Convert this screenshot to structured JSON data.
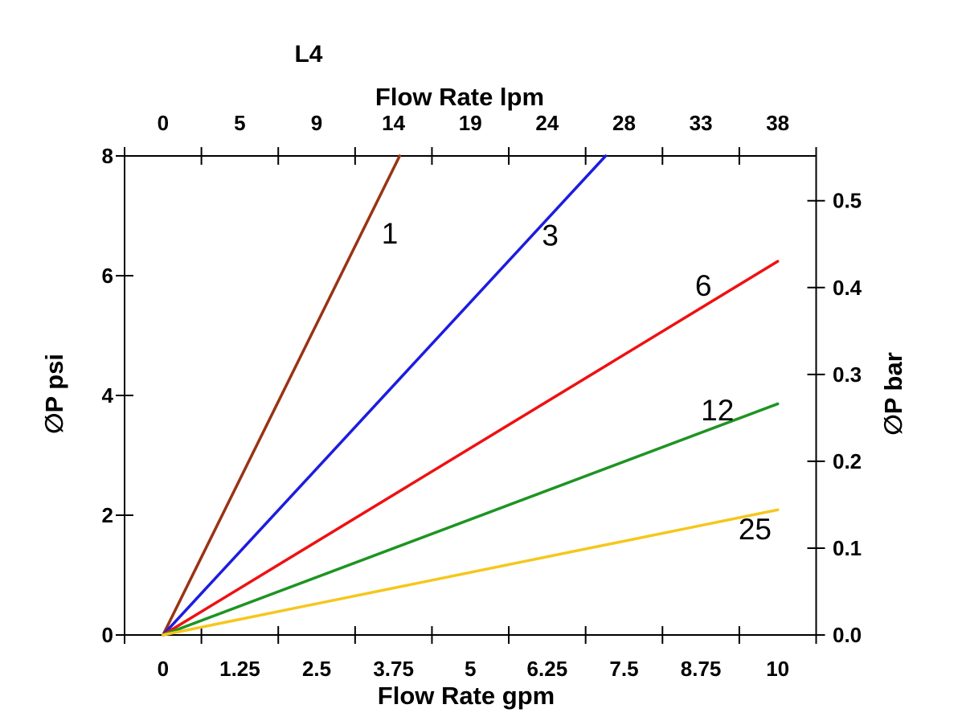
{
  "chart_data": {
    "type": "line",
    "title": "L4",
    "top_axis": {
      "label": "Flow Rate lpm",
      "tick_labels": [
        "0",
        "5",
        "9",
        "14",
        "19",
        "24",
        "28",
        "33",
        "38"
      ]
    },
    "bottom_axis": {
      "label": "Flow Rate gpm",
      "tick_labels": [
        "0",
        "1.25",
        "2.5",
        "3.75",
        "5",
        "6.25",
        "7.5",
        "8.75",
        "10"
      ],
      "range_gpm": [
        0,
        10
      ]
    },
    "left_axis": {
      "label": "∅P psi",
      "tick_labels": [
        "0",
        "2",
        "4",
        "6",
        "8"
      ],
      "tick_values_psi": [
        0,
        2,
        4,
        6,
        8
      ],
      "range_psi": [
        0,
        8
      ]
    },
    "right_axis": {
      "label": "∅P bar",
      "tick_labels": [
        "0.0",
        "0.1",
        "0.2",
        "0.3",
        "0.4",
        "0.5"
      ],
      "tick_values_bar": [
        0.0,
        0.1,
        0.2,
        0.3,
        0.4,
        0.5
      ],
      "psi_per_bar": 14.5038
    },
    "series": [
      {
        "label": "1",
        "color": "#993314",
        "points_gpm_psi": [
          [
            0,
            0
          ],
          [
            3.85,
            8
          ]
        ],
        "label_at_gpm_psi": [
          3.69,
          6.71
        ]
      },
      {
        "label": "3",
        "color": "#1c1ce0",
        "points_gpm_psi": [
          [
            0,
            0
          ],
          [
            7.2,
            8
          ]
        ],
        "label_at_gpm_psi": [
          6.3,
          6.68
        ]
      },
      {
        "label": "6",
        "color": "#ee1111",
        "points_gpm_psi": [
          [
            0,
            0
          ],
          [
            10,
            6.24
          ]
        ],
        "label_at_gpm_psi": [
          8.79,
          5.84
        ]
      },
      {
        "label": "12",
        "color": "#1e9422",
        "points_gpm_psi": [
          [
            0,
            0
          ],
          [
            10,
            3.86
          ]
        ],
        "label_at_gpm_psi": [
          9.02,
          3.76
        ]
      },
      {
        "label": "25",
        "color": "#f5c71d",
        "points_gpm_psi": [
          [
            0,
            0
          ],
          [
            10,
            2.09
          ]
        ],
        "label_at_gpm_psi": [
          9.63,
          1.77
        ]
      }
    ]
  }
}
